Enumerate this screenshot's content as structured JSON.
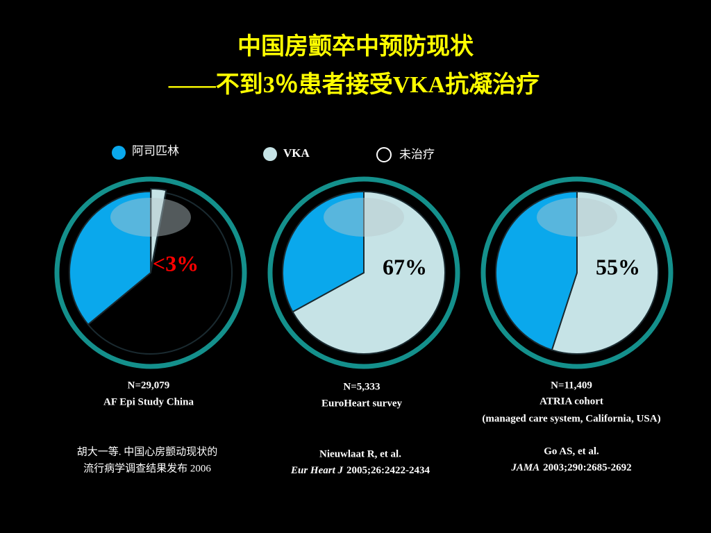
{
  "title": [
    "中国房颤卒中预防现状",
    "——不到3％患者接受VKA抗凝治疗"
  ],
  "legend": [
    {
      "name": "阿司匹林",
      "color": "#0aa8ec"
    },
    {
      "name": "VKA",
      "color": "#c6e3e6"
    },
    {
      "name": "未治疗",
      "color": "#000000"
    }
  ],
  "chart_data": [
    {
      "type": "pie",
      "values": [
        36,
        3,
        61
      ],
      "value_labels": [
        null,
        "<3%",
        null
      ],
      "value_label_color": "#ff0000",
      "notes": [
        "N=29,079",
        "AF Epi Study China"
      ],
      "source": [
        "胡大一等. 中国心房颤动现状的",
        "流行病学调查结果发布 2006"
      ]
    },
    {
      "type": "pie",
      "values": [
        33,
        67,
        0
      ],
      "value_labels": [
        null,
        "67%",
        null
      ],
      "value_label_color": "#000000",
      "notes": [
        "N=5,333",
        "EuroHeart survey"
      ],
      "source": [
        "Nieuwlaat R, et al.",
        {
          "italic": "Eur Heart J",
          "text": "2005;26:2422-2434"
        }
      ]
    },
    {
      "type": "pie",
      "values": [
        45,
        55,
        0
      ],
      "value_labels": [
        null,
        "55%",
        null
      ],
      "value_label_color": "#000000",
      "notes": [
        "N=11,409",
        "ATRIA cohort",
        "(managed care system, California, USA)"
      ],
      "source": [
        "Go AS, et al.",
        {
          "italic": "JAMA",
          "text": "2003;290:2685-2692"
        }
      ]
    }
  ]
}
